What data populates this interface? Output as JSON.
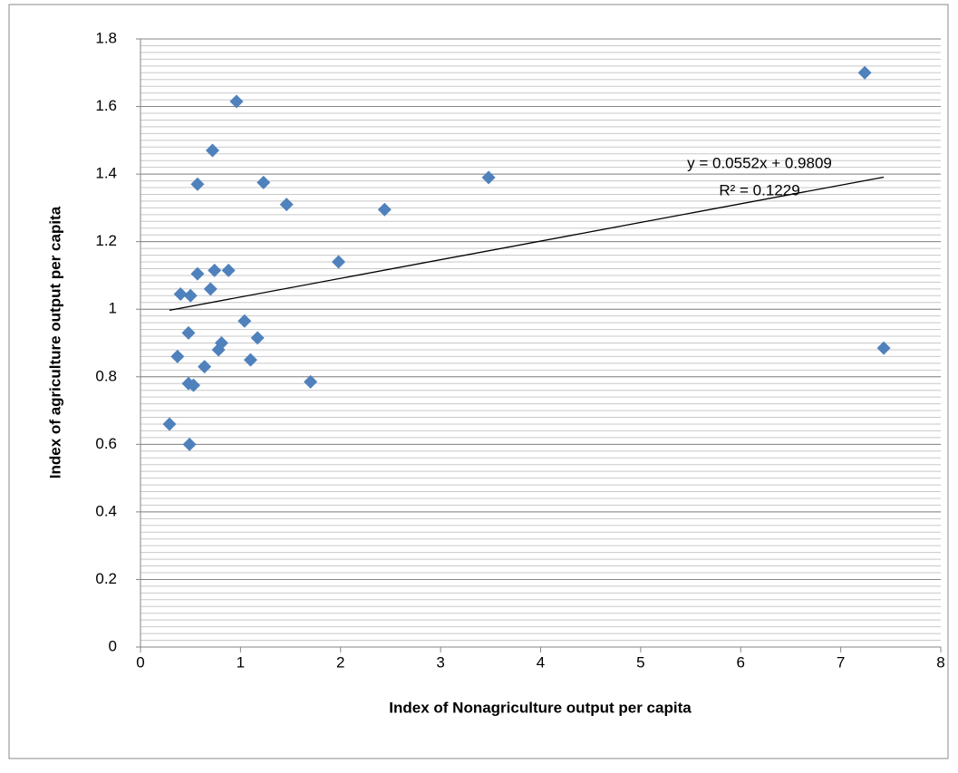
{
  "chart_data": {
    "type": "scatter",
    "x_label": "Index of Nonagriculture output per capita",
    "y_label": "Index of agriculture output per capita",
    "series": [
      {
        "color": "#4f81bd",
        "x": [
          0.29,
          0.49,
          0.37,
          0.48,
          0.53,
          0.48,
          0.64,
          0.78,
          0.81,
          0.4,
          0.5,
          0.7,
          0.57,
          0.74,
          0.88,
          1.04,
          1.1,
          1.17,
          0.57,
          0.72,
          0.96,
          1.23,
          1.46,
          1.7,
          1.98,
          2.44,
          3.48,
          7.24,
          7.43
        ],
        "values": [
          0.66,
          0.6,
          0.86,
          0.78,
          0.775,
          0.93,
          0.83,
          0.88,
          0.9,
          1.045,
          1.04,
          1.06,
          1.105,
          1.115,
          1.115,
          0.965,
          0.85,
          0.915,
          1.37,
          1.47,
          1.615,
          1.375,
          1.31,
          0.785,
          1.14,
          1.295,
          1.39,
          1.7,
          0.885
        ]
      }
    ],
    "trendline": {
      "slope": 0.0552,
      "intercept": 0.9809,
      "label": "y = 0.0552x + 0.9809",
      "r2_label": "R² = 0.1229"
    },
    "xlim": [
      0,
      8
    ],
    "xticks": [
      0,
      1,
      2,
      3,
      4,
      5,
      6,
      7,
      8
    ],
    "ylim": [
      0,
      1.8
    ],
    "yticks": [
      0,
      0.2,
      0.4,
      0.6,
      0.8,
      1,
      1.2,
      1.4,
      1.6,
      1.8
    ],
    "grid": true,
    "minor_grid_step": 0.02
  }
}
